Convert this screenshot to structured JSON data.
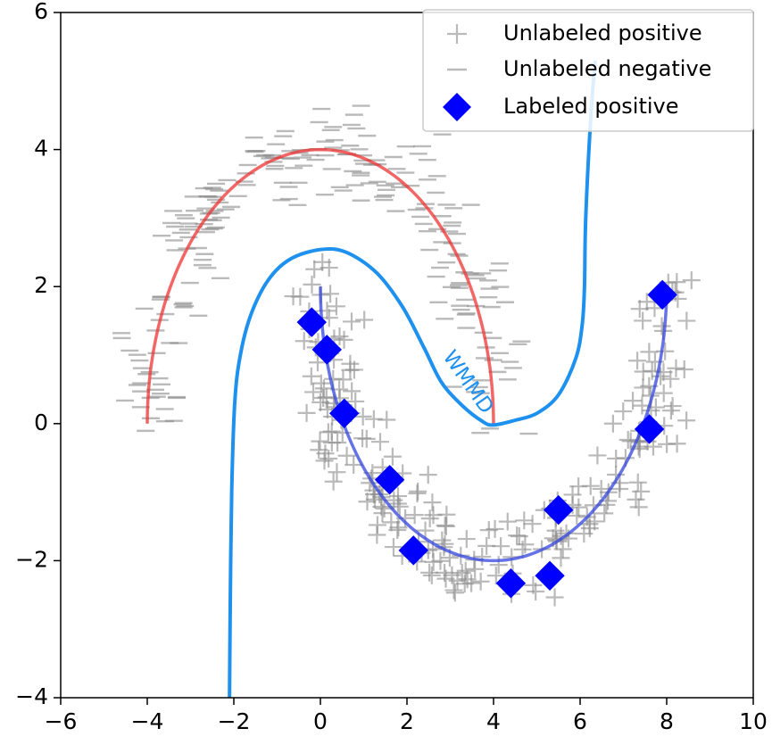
{
  "chart_data": {
    "type": "scatter",
    "title": "",
    "xlabel": "",
    "ylabel": "",
    "xlim": [
      -6,
      10
    ],
    "ylim": [
      -4,
      6
    ],
    "xticks": [
      -6,
      -4,
      -2,
      0,
      2,
      4,
      6,
      8,
      10
    ],
    "yticks": [
      -4,
      -2,
      0,
      2,
      4,
      6
    ],
    "xtick_labels": [
      "−6",
      "−4",
      "−2",
      "0",
      "2",
      "4",
      "6",
      "8",
      "10"
    ],
    "ytick_labels": [
      "−4",
      "−2",
      "0",
      "2",
      "4",
      "6"
    ],
    "grid": false,
    "legend": {
      "placement": "top-right",
      "entries": [
        "Unlabeled positive",
        "Unlabeled negative",
        "Labeled positive"
      ]
    },
    "colors": {
      "unlabeled": "#8c8c8c",
      "labeled_positive": "#0000ff",
      "wmmd_boundary": "#1e90ee",
      "upper_moon": "#ee3333",
      "lower_moon": "#3344dd"
    },
    "annotation": {
      "text": "WMMD",
      "x": 3.4,
      "y": 0.6,
      "rotation": -55
    },
    "series": [
      {
        "name": "Labeled positive",
        "marker": "diamond",
        "points": [
          [
            -0.2,
            1.48
          ],
          [
            0.15,
            1.08
          ],
          [
            0.55,
            0.15
          ],
          [
            1.6,
            -0.82
          ],
          [
            2.15,
            -1.85
          ],
          [
            4.4,
            -2.33
          ],
          [
            5.3,
            -2.22
          ],
          [
            5.5,
            -1.26
          ],
          [
            7.6,
            -0.08
          ],
          [
            7.9,
            1.88
          ]
        ]
      },
      {
        "name": "Upper moon curve",
        "type": "line",
        "center": [
          0,
          0
        ],
        "radius_x": 4,
        "radius_y": 4,
        "from_deg": 0,
        "to_deg": 180
      },
      {
        "name": "Lower moon curve",
        "type": "line",
        "center": [
          4,
          2
        ],
        "radius_x": 4,
        "radius_y": 4,
        "from_deg": 180,
        "to_deg": 360
      },
      {
        "name": "WMMD decision boundary",
        "type": "line",
        "points": [
          [
            -2.1,
            -4.0
          ],
          [
            -2.08,
            -2.5
          ],
          [
            -2.05,
            -1.0
          ],
          [
            -1.98,
            0.3
          ],
          [
            -1.85,
            1.0
          ],
          [
            -1.6,
            1.6
          ],
          [
            -1.2,
            2.1
          ],
          [
            -0.7,
            2.4
          ],
          [
            0.0,
            2.54
          ],
          [
            0.6,
            2.5
          ],
          [
            1.3,
            2.2
          ],
          [
            1.9,
            1.7
          ],
          [
            2.4,
            1.1
          ],
          [
            2.8,
            0.6
          ],
          [
            3.3,
            0.25
          ],
          [
            3.75,
            0.03
          ],
          [
            4.0,
            -0.02
          ],
          [
            4.5,
            0.05
          ],
          [
            5.0,
            0.15
          ],
          [
            5.5,
            0.42
          ],
          [
            5.9,
            0.95
          ],
          [
            6.05,
            1.45
          ],
          [
            6.1,
            2.0
          ],
          [
            6.13,
            3.0
          ],
          [
            6.25,
            4.5
          ],
          [
            6.35,
            5.3
          ]
        ]
      },
      {
        "name": "Unlabeled negative",
        "marker": "minus",
        "generator": "upper moon, 250 points, noise 0.3, seed 7"
      },
      {
        "name": "Unlabeled positive",
        "marker": "plus",
        "generator": "lower moon, 250 points, noise 0.3, seed 11"
      }
    ]
  }
}
